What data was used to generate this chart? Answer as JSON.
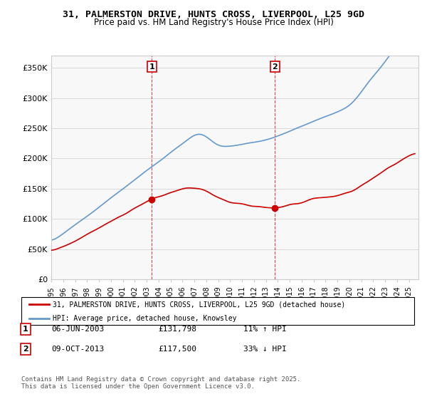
{
  "title": "31, PALMERSTON DRIVE, HUNTS CROSS, LIVERPOOL, L25 9GD",
  "subtitle": "Price paid vs. HM Land Registry's House Price Index (HPI)",
  "ylabel": "",
  "ylim": [
    0,
    370000
  ],
  "yticks": [
    0,
    50000,
    100000,
    150000,
    200000,
    250000,
    300000,
    350000
  ],
  "ytick_labels": [
    "£0",
    "£50K",
    "£100K",
    "£150K",
    "£200K",
    "£250K",
    "£300K",
    "£350K"
  ],
  "legend_line1": "31, PALMERSTON DRIVE, HUNTS CROSS, LIVERPOOL, L25 9GD (detached house)",
  "legend_line2": "HPI: Average price, detached house, Knowsley",
  "transaction1_label": "1",
  "transaction1_date": "06-JUN-2003",
  "transaction1_price": "£131,798",
  "transaction1_hpi": "11% ↑ HPI",
  "transaction2_label": "2",
  "transaction2_date": "09-OCT-2013",
  "transaction2_price": "£117,500",
  "transaction2_hpi": "33% ↓ HPI",
  "footer": "Contains HM Land Registry data © Crown copyright and database right 2025.\nThis data is licensed under the Open Government Licence v3.0.",
  "transaction1_year": 2003.43,
  "transaction1_value": 131798,
  "transaction2_year": 2013.77,
  "transaction2_value": 117500,
  "property_color": "#cc0000",
  "hpi_color": "#6699cc",
  "vline_color": "#cc0000",
  "background_color": "#ffffff",
  "plot_bg_color": "#f8f8f8"
}
